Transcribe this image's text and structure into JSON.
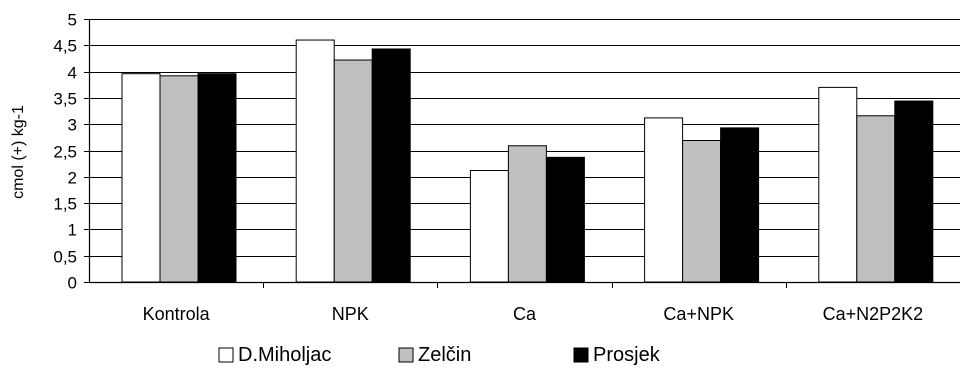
{
  "chart_data": {
    "type": "bar",
    "title": "",
    "xlabel": "",
    "ylabel": "cmol (+) kg-1",
    "ylim": [
      0,
      5
    ],
    "ytick_labels": [
      "0",
      "0,5",
      "1",
      "1,5",
      "2",
      "2,5",
      "3",
      "3,5",
      "4",
      "4,5",
      "5"
    ],
    "categories": [
      "Kontrola",
      "NPK",
      "Ca",
      "Ca+NPK",
      "Ca+N2P2K2"
    ],
    "series": [
      {
        "name": "D.Miholjac",
        "color": "#ffffff",
        "values": [
          3.96,
          4.6,
          2.12,
          3.12,
          3.7
        ]
      },
      {
        "name": "Zelčin",
        "color": "#c0c0c0",
        "values": [
          3.92,
          4.22,
          2.59,
          2.69,
          3.16
        ]
      },
      {
        "name": "Prosjek",
        "color": "#000000",
        "values": [
          3.96,
          4.43,
          2.37,
          2.93,
          3.44
        ]
      }
    ],
    "grid": true,
    "legend_position": "bottom"
  }
}
